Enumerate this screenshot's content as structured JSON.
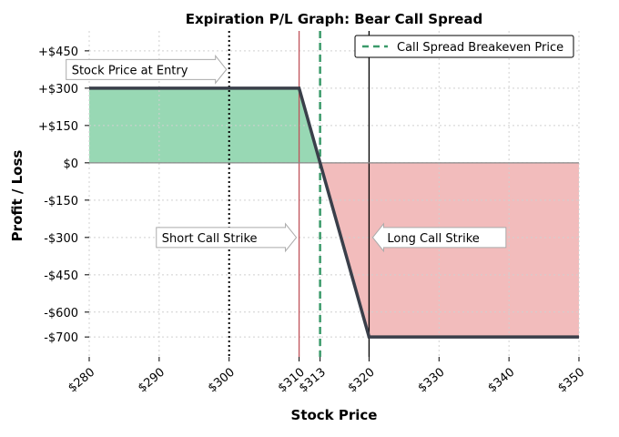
{
  "chart_data": {
    "type": "area",
    "title": "Expiration P/L Graph: Bear Call Spread",
    "xlabel": "Stock Price",
    "ylabel": "Profit / Loss",
    "xlim": [
      280,
      350
    ],
    "ylim": [
      -780,
      530
    ],
    "x_ticks": [
      280,
      290,
      300,
      310,
      313,
      320,
      330,
      340,
      350
    ],
    "x_tick_labels": [
      "$280",
      "$290",
      "$300",
      "$310",
      "$313",
      "$320",
      "$330",
      "$340",
      "$350"
    ],
    "y_ticks": [
      450,
      300,
      150,
      0,
      -150,
      -300,
      -450,
      -600,
      -700
    ],
    "y_tick_labels": [
      "+$450",
      "+$300",
      "+$150",
      "$0",
      "-$150",
      "-$300",
      "-$450",
      "-$600",
      "-$700"
    ],
    "grid": true,
    "series": [
      {
        "x": [
          280,
          310,
          320,
          350
        ],
        "y": [
          300,
          300,
          -700,
          -700
        ],
        "color": "#3a3f4a"
      }
    ],
    "profit_color": "#98d8b4",
    "loss_color": "#f2bcbc",
    "vertical_lines": [
      {
        "x": 300,
        "style": "dotted",
        "color": "#000000"
      },
      {
        "x": 310,
        "style": "solid",
        "color": "#c0525a"
      },
      {
        "x": 313,
        "style": "dashed",
        "color": "#3a9a6a"
      },
      {
        "x": 320,
        "style": "solid",
        "color": "#000000"
      }
    ],
    "annotations": [
      {
        "text": "Stock Price at Entry",
        "x": 300,
        "y": 375,
        "arrow": "right"
      },
      {
        "text": "Short Call Strike",
        "x": 310,
        "y": -300,
        "arrow": "right"
      },
      {
        "text": "Long Call Strike",
        "x": 320,
        "y": -300,
        "arrow": "left"
      }
    ],
    "legend": {
      "position": "top-right",
      "entries": [
        {
          "label": "Call Spread Breakeven Price",
          "style": "dashed",
          "color": "#3a9a6a"
        }
      ]
    }
  }
}
